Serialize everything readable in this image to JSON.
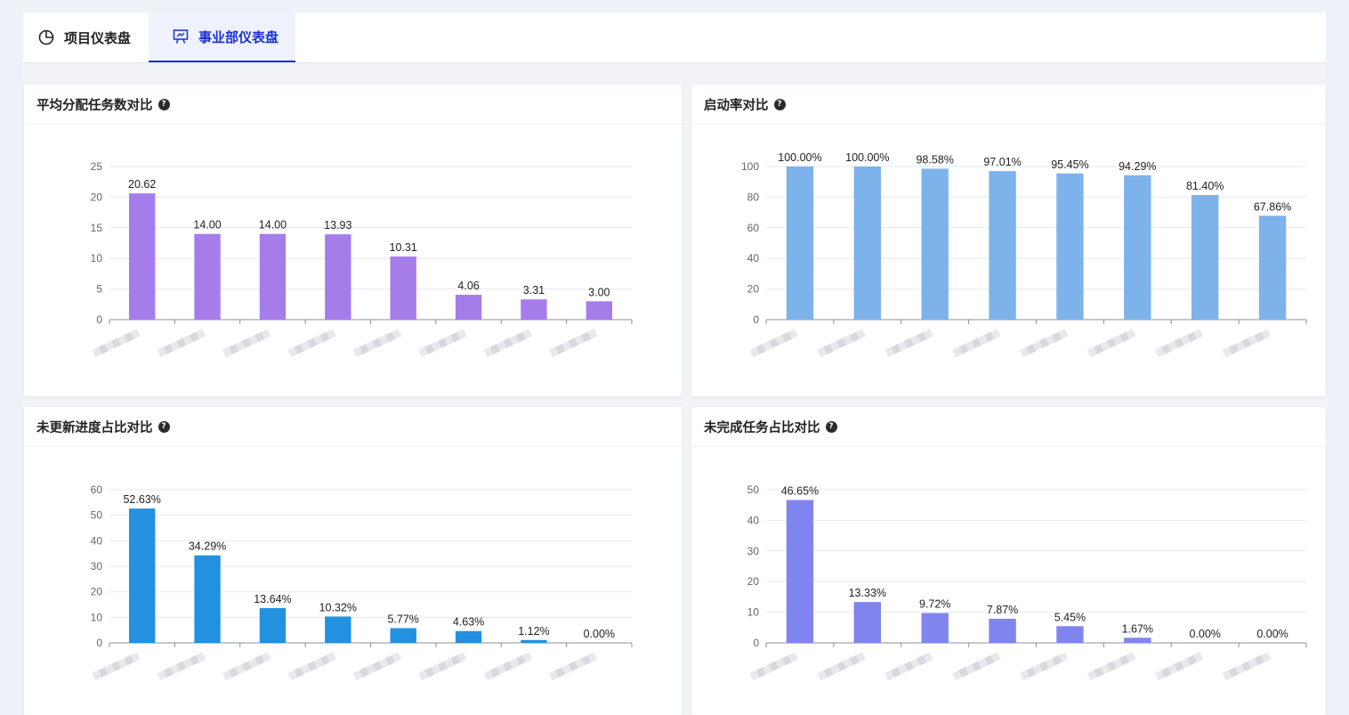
{
  "tabs": [
    {
      "label": "项目仪表盘",
      "icon": "pie-chart-icon",
      "active": false
    },
    {
      "label": "事业部仪表盘",
      "icon": "presentation-board-icon",
      "active": true
    }
  ],
  "colors": {
    "active_tab": "#1a2fd6",
    "bar_purple": "#a67ceb",
    "bar_lightblue": "#7db2ea",
    "bar_blue": "#2390e0",
    "bar_indigo": "#8084ee"
  },
  "panels": [
    {
      "title": "平均分配任务数对比",
      "help_icon": "question-circle-icon"
    },
    {
      "title": "启动率对比",
      "help_icon": "question-circle-icon"
    },
    {
      "title": "未更新进度占比对比",
      "help_icon": "question-circle-icon"
    },
    {
      "title": "未完成任务占比对比",
      "help_icon": "question-circle-icon"
    }
  ],
  "chart_data": [
    {
      "type": "bar",
      "title": "平均分配任务数对比",
      "categories": [
        "",
        "",
        "",
        "",
        "",
        "",
        "",
        ""
      ],
      "category_note": "x-axis labels are blurred/redacted",
      "values": [
        20.62,
        14.0,
        14.0,
        13.93,
        10.31,
        4.06,
        3.31,
        3.0
      ],
      "value_labels": [
        "20.62",
        "14.00",
        "14.00",
        "13.93",
        "10.31",
        "4.06",
        "3.31",
        "3.00"
      ],
      "ylim": [
        0,
        25
      ],
      "yticks": [
        0,
        5,
        10,
        15,
        20,
        25
      ],
      "color": "#a67ceb",
      "grid": true
    },
    {
      "type": "bar",
      "title": "启动率对比",
      "categories": [
        "",
        "",
        "",
        "",
        "",
        "",
        "",
        ""
      ],
      "values": [
        100.0,
        100.0,
        98.58,
        97.01,
        95.45,
        94.29,
        81.4,
        67.86
      ],
      "value_labels": [
        "100.00%",
        "100.00%",
        "98.58%",
        "97.01%",
        "95.45%",
        "94.29%",
        "81.40%",
        "67.86%"
      ],
      "ylim": [
        0,
        100
      ],
      "yticks": [
        0,
        20,
        40,
        60,
        80,
        100
      ],
      "color": "#7db2ea",
      "grid": true
    },
    {
      "type": "bar",
      "title": "未更新进度占比对比",
      "categories": [
        "",
        "",
        "",
        "",
        "",
        "",
        "",
        ""
      ],
      "values": [
        52.63,
        34.29,
        13.64,
        10.32,
        5.77,
        4.63,
        1.12,
        0.0
      ],
      "value_labels": [
        "52.63%",
        "34.29%",
        "13.64%",
        "10.32%",
        "5.77%",
        "4.63%",
        "1.12%",
        "0.00%"
      ],
      "ylim": [
        0,
        60
      ],
      "yticks": [
        0,
        10,
        20,
        30,
        40,
        50,
        60
      ],
      "color": "#2390e0",
      "grid": true
    },
    {
      "type": "bar",
      "title": "未完成任务占比对比",
      "categories": [
        "",
        "",
        "",
        "",
        "",
        "",
        "",
        ""
      ],
      "values": [
        46.65,
        13.33,
        9.72,
        7.87,
        5.45,
        1.67,
        0.0,
        0.0
      ],
      "value_labels": [
        "46.65%",
        "13.33%",
        "9.72%",
        "7.87%",
        "5.45%",
        "1.67%",
        "0.00%",
        "0.00%"
      ],
      "ylim": [
        0,
        50
      ],
      "yticks": [
        0,
        10,
        20,
        30,
        40,
        50
      ],
      "color": "#8084ee",
      "grid": true
    }
  ]
}
